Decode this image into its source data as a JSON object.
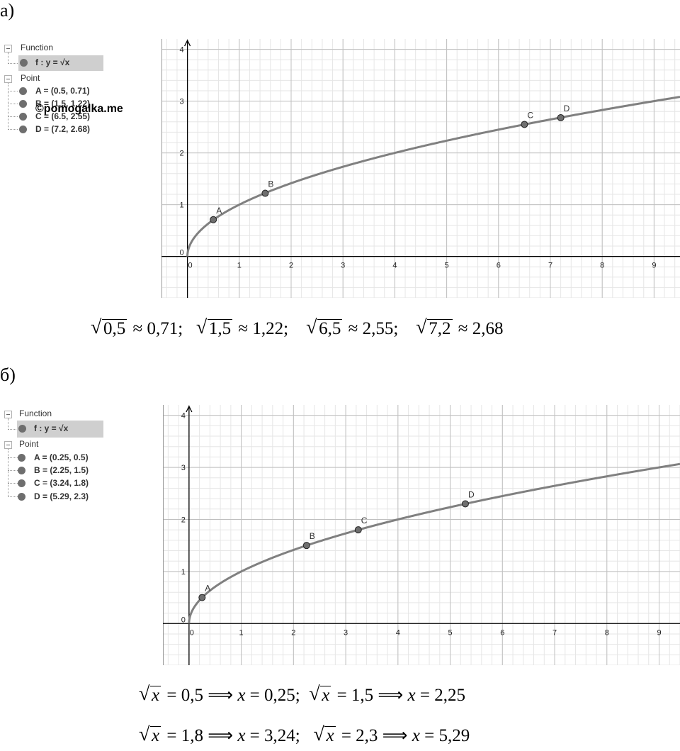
{
  "parts": [
    {
      "label": "а)",
      "algebra": {
        "function_header": "Function",
        "function_label": "f : y = √x",
        "point_header": "Point",
        "points": [
          "A = (0.5, 0.71)",
          "B = (1.5, 1.22)",
          "C = (6.5, 2.55)",
          "D = (7.2, 2.68)"
        ]
      },
      "formula": "√0,5 ≈ 0,71;   √1,5 ≈ 1,22;   √6,5 ≈ 2,55;   √7,2 ≈ 2,68"
    },
    {
      "label": "б)",
      "algebra": {
        "function_header": "Function",
        "function_label": "f : y = √x",
        "point_header": "Point",
        "points": [
          "A = (0.25, 0.5)",
          "B = (2.25, 1.5)",
          "C = (3.24, 1.8)",
          "D = (5.29, 2.3)"
        ]
      },
      "formulas": [
        "√x = 0,5 ⟹ x = 0,25;  √x = 1,5 ⟹ x = 2,25",
        "√x = 1,8 ⟹ x = 3,24;  √x = 2,3 ⟹ x = 5,29"
      ]
    }
  ],
  "watermark": "©pomogalka.me",
  "colors": {
    "curve": "#808080",
    "point": "#6e6e6e",
    "grid_major": "#c0c0c0",
    "grid_minor": "#e6e6e6",
    "axis": "#000000"
  },
  "chart_data": [
    {
      "type": "line",
      "function": "y = sqrt(x)",
      "xlim": [
        -0.5,
        9.5
      ],
      "ylim": [
        -0.8,
        4.2
      ],
      "x_ticks": [
        "0",
        "1",
        "2",
        "3",
        "4",
        "5",
        "6",
        "7",
        "8",
        "9"
      ],
      "y_ticks": [
        "0",
        "1",
        "2",
        "3",
        "4"
      ],
      "points": [
        {
          "name": "A",
          "x": 0.5,
          "y": 0.71
        },
        {
          "name": "B",
          "x": 1.5,
          "y": 1.22
        },
        {
          "name": "C",
          "x": 6.5,
          "y": 2.55
        },
        {
          "name": "D",
          "x": 7.2,
          "y": 2.68
        }
      ],
      "grid": true
    },
    {
      "type": "line",
      "function": "y = sqrt(x)",
      "xlim": [
        -0.5,
        9.4
      ],
      "ylim": [
        -0.8,
        4.2
      ],
      "x_ticks": [
        "0",
        "1",
        "2",
        "3",
        "4",
        "5",
        "6",
        "7",
        "8",
        "9"
      ],
      "y_ticks": [
        "0",
        "1",
        "2",
        "3",
        "4"
      ],
      "points": [
        {
          "name": "A",
          "x": 0.25,
          "y": 0.5
        },
        {
          "name": "B",
          "x": 2.25,
          "y": 1.5
        },
        {
          "name": "C",
          "x": 3.24,
          "y": 1.8
        },
        {
          "name": "D",
          "x": 5.29,
          "y": 2.3
        }
      ],
      "grid": true
    }
  ]
}
